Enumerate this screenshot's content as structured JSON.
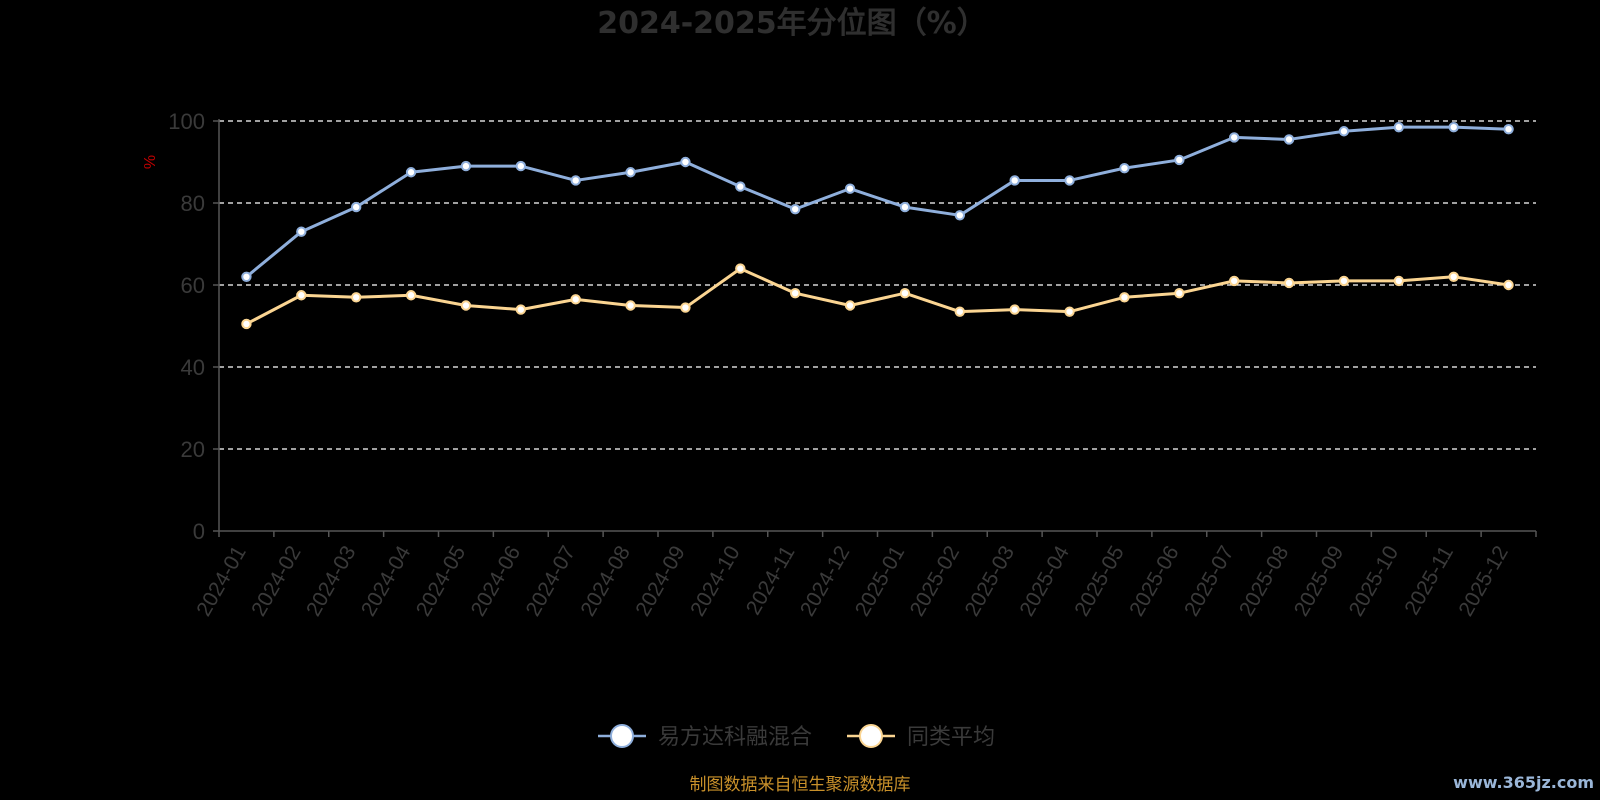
{
  "title": "2024-2025年分位图（%）",
  "y_unit": "%",
  "source_note": "制图数据来自恒生聚源数据库",
  "watermark": "www.365jz.com",
  "colors": {
    "background": "#000000",
    "series_a": "#8fafdc",
    "series_b": "#fbd592",
    "grid": "#ffffff",
    "axis": "#555555"
  },
  "legend": [
    {
      "label": "易方达科融混合",
      "color": "#8fafdc"
    },
    {
      "label": "同类平均",
      "color": "#fbd592"
    }
  ],
  "chart_data": {
    "type": "line",
    "title": "2024-2025年分位图（%）",
    "ylabel": "%",
    "ylim": [
      0,
      100
    ],
    "yticks": [
      0,
      20,
      40,
      60,
      80,
      100
    ],
    "grid": true,
    "legend_position": "bottom",
    "categories": [
      "2024-01",
      "2024-02",
      "2024-03",
      "2024-04",
      "2024-05",
      "2024-06",
      "2024-07",
      "2024-08",
      "2024-09",
      "2024-10",
      "2024-11",
      "2024-12",
      "2025-01",
      "2025-02",
      "2025-03",
      "2025-04",
      "2025-05",
      "2025-06",
      "2025-07",
      "2025-08",
      "2025-09",
      "2025-10",
      "2025-11",
      "2025-12"
    ],
    "series": [
      {
        "name": "易方达科融混合",
        "values": [
          62,
          73,
          79,
          87.5,
          89,
          89,
          85.5,
          87.5,
          90,
          84,
          78.5,
          83.5,
          79,
          77,
          85.5,
          85.5,
          88.5,
          90.5,
          96,
          95.5,
          97.5,
          98.5,
          98.5,
          98
        ]
      },
      {
        "name": "同类平均",
        "values": [
          50.5,
          57.5,
          57,
          57.5,
          55,
          54,
          56.5,
          55,
          54.5,
          64,
          58,
          55,
          58,
          53.5,
          54,
          53.5,
          57,
          58,
          61,
          60.5,
          61,
          61,
          62,
          60
        ]
      }
    ]
  }
}
